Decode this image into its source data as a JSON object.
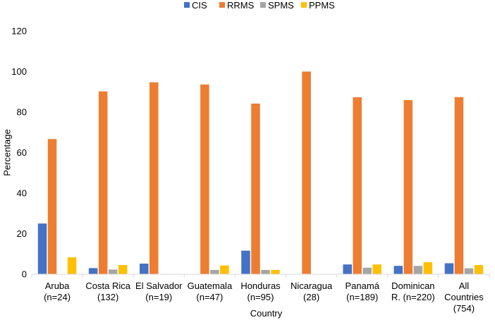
{
  "chart_data": {
    "type": "bar",
    "title": "",
    "xlabel": "Country",
    "ylabel": "Percentage",
    "ylim": [
      0,
      120
    ],
    "yticks": [
      0,
      20,
      40,
      60,
      80,
      100,
      120
    ],
    "categories": [
      [
        "Aruba",
        "(n=24)"
      ],
      [
        "Costa Rica",
        "(132)"
      ],
      [
        "El Salvador",
        "(n=19)"
      ],
      [
        "Guatemala",
        "(n=47)"
      ],
      [
        "Honduras",
        "(n=95)"
      ],
      [
        "Nicaragua",
        "(28)"
      ],
      [
        "Panamá",
        "(n=189)"
      ],
      [
        "Dominican",
        "R. (n=220)"
      ],
      [
        "All",
        "Countries",
        "(754)"
      ]
    ],
    "series": [
      {
        "name": "CIS",
        "color": "#4472C4",
        "values": [
          25,
          3,
          5.2,
          0,
          11.6,
          0,
          4.8,
          4.1,
          5.4
        ]
      },
      {
        "name": "RRMS",
        "color": "#ED7D31",
        "values": [
          66.7,
          90.2,
          94.7,
          93.6,
          84.2,
          100,
          87.3,
          85.9,
          87.4
        ]
      },
      {
        "name": "SPMS",
        "color": "#A5A5A5",
        "values": [
          0,
          2.3,
          0,
          2.1,
          2.1,
          0,
          3.2,
          4.1,
          2.9
        ]
      },
      {
        "name": "PPMS",
        "color": "#FFC000",
        "values": [
          8.3,
          4.5,
          0,
          4.3,
          2.1,
          0,
          4.8,
          5.9,
          4.5
        ]
      }
    ],
    "legend_position": "top"
  }
}
